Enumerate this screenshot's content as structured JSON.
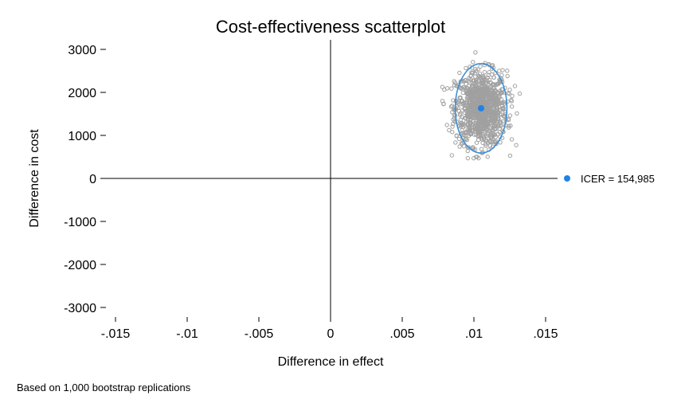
{
  "chart_data": {
    "type": "scatter",
    "title": "Cost-effectiveness scatterplot",
    "xlabel": "Difference in effect",
    "ylabel": "Difference in cost",
    "xlim": [
      -0.015,
      0.015
    ],
    "ylim": [
      -3000,
      3000
    ],
    "xticks": [
      -0.015,
      -0.01,
      -0.005,
      0,
      0.005,
      0.01,
      0.015
    ],
    "xtick_labels": [
      "-.015",
      "-.01",
      "-.005",
      "0",
      ".005",
      ".01",
      ".015"
    ],
    "yticks": [
      3000,
      2000,
      1000,
      0,
      -1000,
      -2000,
      -3000
    ],
    "ytick_labels": [
      "3000",
      "2000",
      "1000",
      "0",
      "-1000",
      "-2000",
      "-3000"
    ],
    "grid": false,
    "legend_position": "right",
    "bootstrap": {
      "replications": 1000,
      "center_x": 0.0105,
      "center_y": 1630,
      "sd_x": 0.0009,
      "sd_y": 430,
      "range_x": [
        0.0078,
        0.0132
      ],
      "range_y": [
        470,
        2930
      ],
      "color": "#a0a0a0"
    },
    "ellipse": {
      "center_x": 0.0105,
      "center_y": 1630,
      "half_width_x": 0.0018,
      "half_height_y": 1040,
      "color": "#3d8fd6"
    },
    "point_estimate": {
      "x": 0.0105,
      "y": 1630,
      "label": "ICER = 154,985",
      "color": "#1f82e6"
    },
    "note": "Based on 1,000 bootstrap replications"
  }
}
